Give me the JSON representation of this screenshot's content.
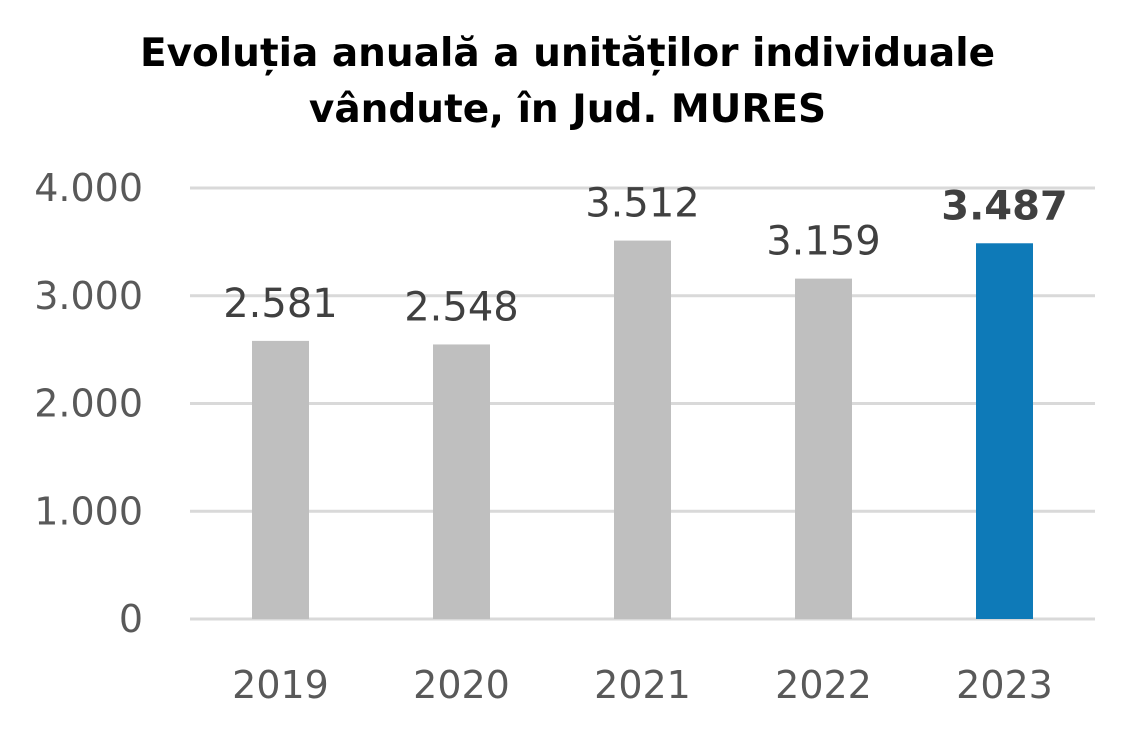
{
  "chart_data": {
    "type": "bar",
    "title": "Evoluția anuală a unităților individuale\nvândute, în Jud. MURES",
    "xlabel": "",
    "ylabel": "",
    "categories": [
      "2019",
      "2020",
      "2021",
      "2022",
      "2023"
    ],
    "values": [
      2581,
      2548,
      3512,
      3159,
      3487
    ],
    "data_labels": [
      "2.581",
      "2.548",
      "3.512",
      "3.159",
      "3.487"
    ],
    "highlighted_index": 4,
    "ylim": [
      0,
      4000
    ],
    "y_ticks": [
      0,
      1000,
      2000,
      3000,
      4000
    ],
    "y_tick_labels": [
      "0",
      "1.000",
      "2.000",
      "3.000",
      "4.000"
    ],
    "grid": true,
    "legend": "none",
    "colors": {
      "bar": "#BFBFBF",
      "bar_highlight": "#0E7AB8",
      "grid": "#D9D9D9",
      "text": "#595959",
      "data_label": "#404040"
    }
  }
}
